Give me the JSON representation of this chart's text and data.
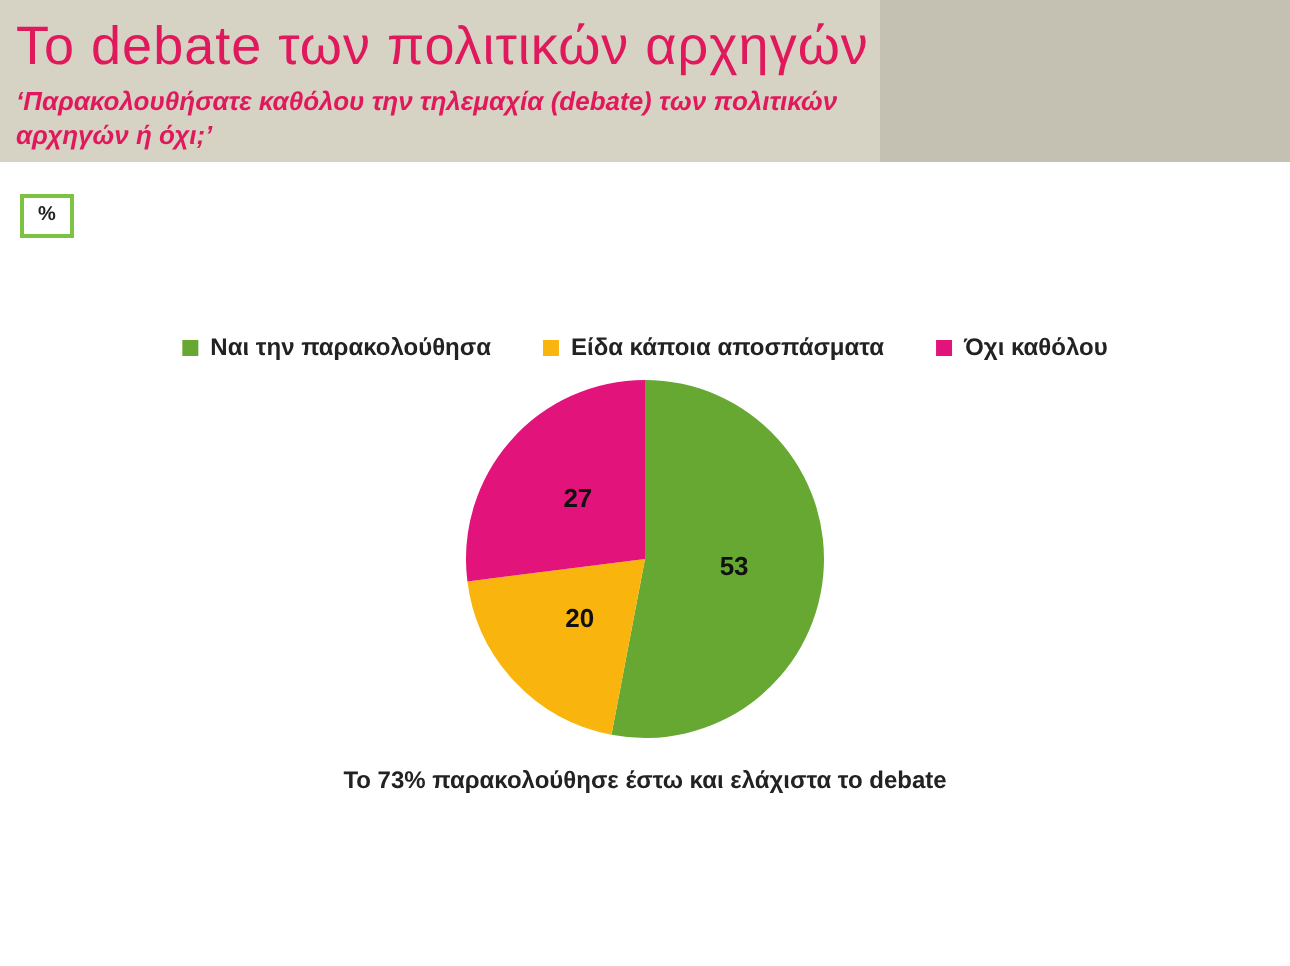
{
  "chart_data": {
    "type": "pie",
    "title": "Το debate των πολιτικών αρχηγών",
    "subtitle": "‘Παρακολουθήσατε καθόλου την τηλεμαχία (debate) των πολιτικών αρχηγών ή όχι;’",
    "categories": [
      "Ναι την παρακολούθησα",
      "Είδα κάποια αποσπάσματα",
      "Όχι καθόλου"
    ],
    "values": [
      53,
      20,
      27
    ],
    "colors": [
      "#67a832",
      "#f9b50e",
      "#e2137a"
    ],
    "data_labels": true,
    "legend": "top",
    "annotations": [
      "%",
      "Το 73% παρακολούθησε έστω και ελάχιστα το debate"
    ]
  }
}
